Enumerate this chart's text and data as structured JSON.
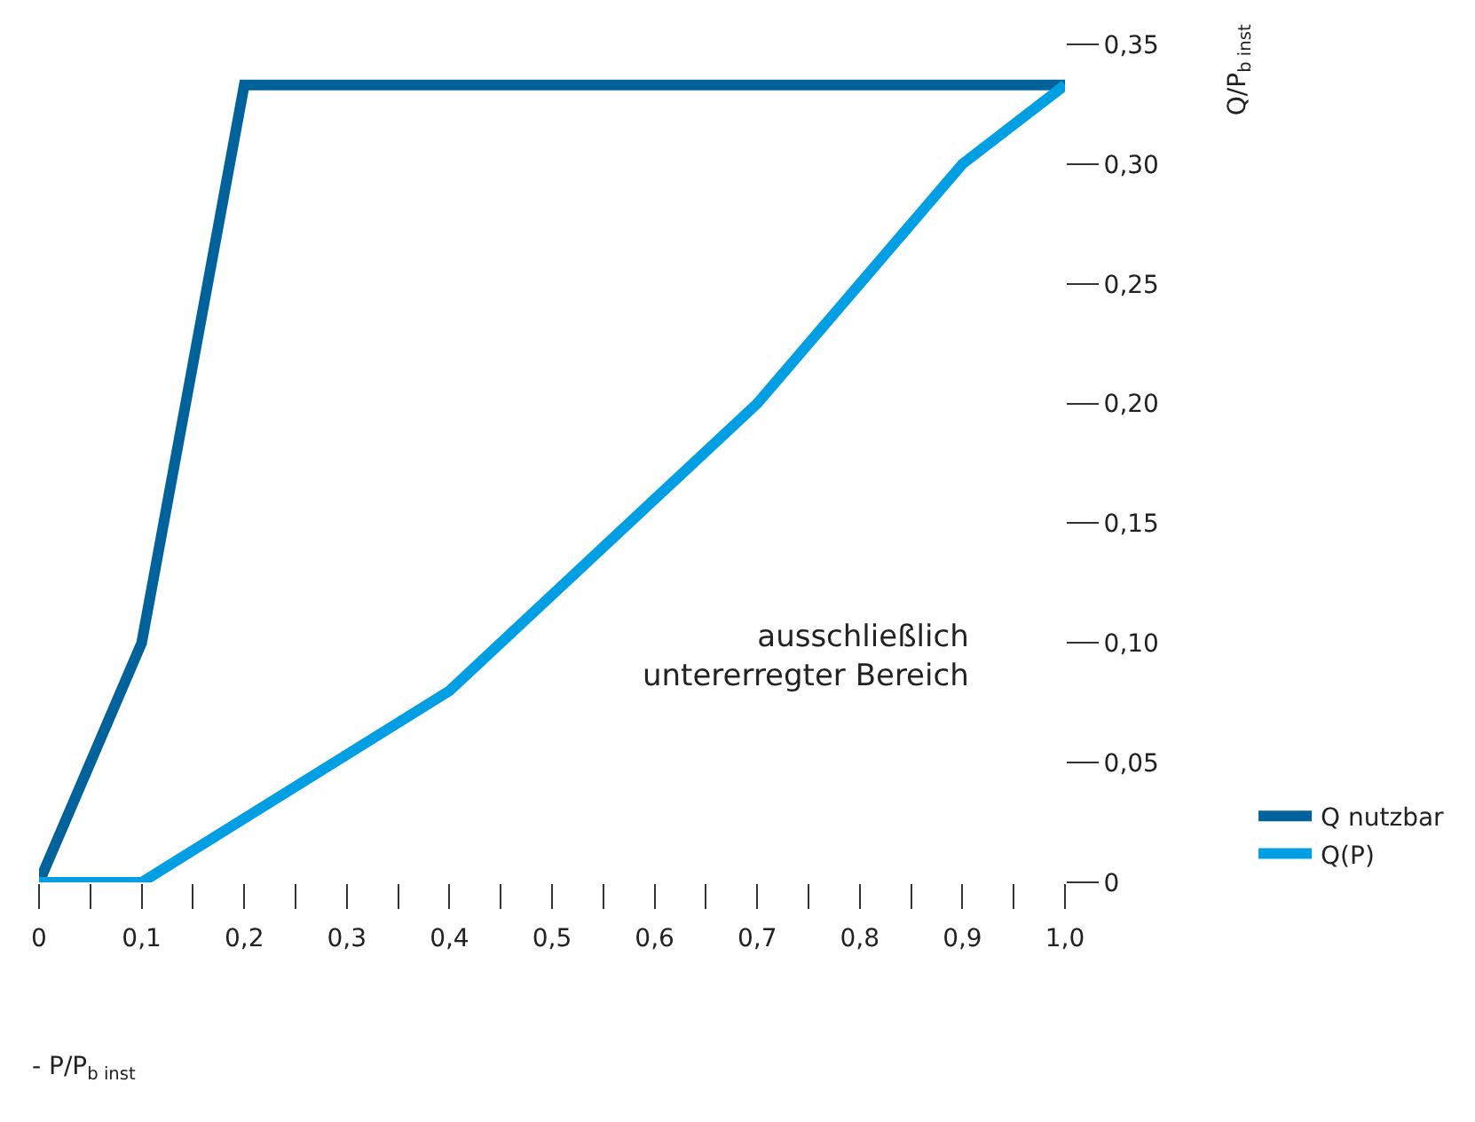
{
  "chart_data": {
    "type": "line",
    "xlabel": "- P/P$_{b inst}$",
    "ylabel": "Q/P$_{b inst}$",
    "annotations": [
      "ausschließlich\nuntererregter Bereich"
    ],
    "series": [
      {
        "name": "Q nutzbar",
        "color": "#00629b",
        "x": [
          0,
          0.1,
          0.2,
          1.0
        ],
        "values": [
          0,
          0.1,
          0.333,
          0.333
        ]
      },
      {
        "name": "Q(P)",
        "color": "#009fe3",
        "x": [
          0,
          0.1,
          0.4,
          0.7,
          0.9,
          1.0
        ],
        "values": [
          0,
          0,
          0.08,
          0.2,
          0.3,
          0.333
        ]
      }
    ],
    "xlim": [
      0,
      1.0
    ],
    "ylim": [
      0,
      0.35
    ],
    "xticks": [
      {
        "value": 0,
        "label": "0"
      },
      {
        "value": 0.05,
        "label": null
      },
      {
        "value": 0.1,
        "label": "0,1"
      },
      {
        "value": 0.15,
        "label": null
      },
      {
        "value": 0.2,
        "label": "0,2"
      },
      {
        "value": 0.25,
        "label": null
      },
      {
        "value": 0.3,
        "label": "0,3"
      },
      {
        "value": 0.35,
        "label": null
      },
      {
        "value": 0.4,
        "label": "0,4"
      },
      {
        "value": 0.45,
        "label": null
      },
      {
        "value": 0.5,
        "label": "0,5"
      },
      {
        "value": 0.55,
        "label": null
      },
      {
        "value": 0.6,
        "label": "0,6"
      },
      {
        "value": 0.65,
        "label": null
      },
      {
        "value": 0.7,
        "label": "0,7"
      },
      {
        "value": 0.75,
        "label": null
      },
      {
        "value": 0.8,
        "label": "0,8"
      },
      {
        "value": 0.85,
        "label": null
      },
      {
        "value": 0.9,
        "label": "0,9"
      },
      {
        "value": 0.95,
        "label": null
      },
      {
        "value": 1.0,
        "label": "1,0"
      }
    ],
    "yticks": [
      {
        "value": 0,
        "label": "0"
      },
      {
        "value": 0.05,
        "label": "0,05"
      },
      {
        "value": 0.1,
        "label": "0,10"
      },
      {
        "value": 0.15,
        "label": "0,15"
      },
      {
        "value": 0.2,
        "label": "0,20"
      },
      {
        "value": 0.25,
        "label": "0,25"
      },
      {
        "value": 0.3,
        "label": "0,30"
      },
      {
        "value": 0.35,
        "label": "0,35"
      }
    ],
    "legend": "bottom right",
    "marker": "none",
    "line_style": "solid"
  }
}
